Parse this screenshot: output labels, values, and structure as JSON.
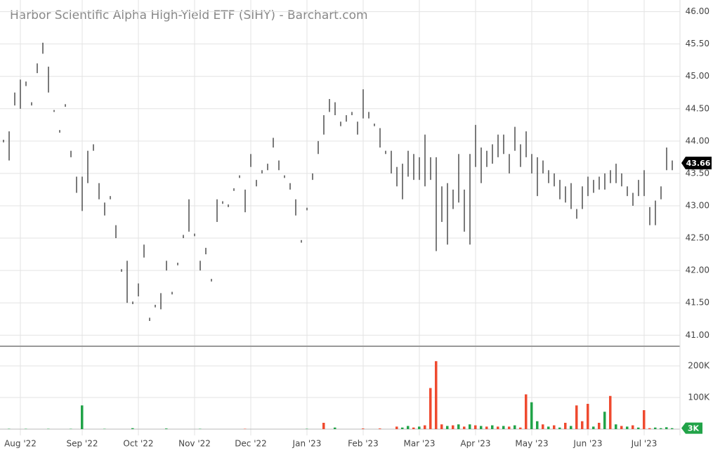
{
  "chart_data": {
    "type": "ohlc",
    "title": "Harbor Scientific Alpha High-Yield ETF (SIHY) - Barchart.com",
    "color": "#222222",
    "grid": true,
    "categories": [
      null,
      null,
      null,
      "Aug '22",
      null,
      null,
      null,
      null,
      null,
      null,
      null,
      null,
      null,
      null,
      "Sep '22",
      null,
      null,
      null,
      null,
      null,
      null,
      null,
      null,
      null,
      "Oct '22",
      null,
      null,
      null,
      null,
      null,
      null,
      null,
      null,
      null,
      "Nov '22",
      null,
      null,
      null,
      null,
      null,
      null,
      null,
      null,
      null,
      "Dec '22",
      null,
      null,
      null,
      null,
      null,
      null,
      null,
      null,
      null,
      "Jan '23",
      null,
      null,
      null,
      null,
      null,
      null,
      null,
      null,
      null,
      "Feb '23",
      null,
      null,
      null,
      null,
      null,
      null,
      null,
      null,
      null,
      "Mar '23",
      null,
      null,
      null,
      null,
      null,
      null,
      null,
      null,
      null,
      "Apr '23",
      null,
      null,
      null,
      null,
      null,
      null,
      null,
      null,
      null,
      "May '23",
      null,
      null,
      null,
      null,
      null,
      null,
      null,
      null,
      null,
      "Jun '23",
      null,
      null,
      null,
      null,
      null,
      null,
      null,
      null,
      null,
      "Jul '23",
      null,
      null,
      null,
      null,
      null
    ],
    "low": [
      43.98,
      43.7,
      44.55,
      44.5,
      44.85,
      44.55,
      45.05,
      45.35,
      44.75,
      44.45,
      44.13,
      44.53,
      43.75,
      43.2,
      42.92,
      43.35,
      43.85,
      43.1,
      42.85,
      43.1,
      42.5,
      41.98,
      41.5,
      41.48,
      41.6,
      42.2,
      41.22,
      41.43,
      41.4,
      42.0,
      41.63,
      42.08,
      42.5,
      42.6,
      42.53,
      42.0,
      42.25,
      41.83,
      42.75,
      43.03,
      42.98,
      43.23,
      43.43,
      42.9,
      43.6,
      43.3,
      43.5,
      43.55,
      43.9,
      43.55,
      43.43,
      43.25,
      42.85,
      42.43,
      42.93,
      43.4,
      43.8,
      44.1,
      44.45,
      44.4,
      44.23,
      44.3,
      44.4,
      44.1,
      44.35,
      44.35,
      44.23,
      43.9,
      43.8,
      43.5,
      43.3,
      43.1,
      43.45,
      43.4,
      43.4,
      43.3,
      43.4,
      42.3,
      42.75,
      42.4,
      42.95,
      43.05,
      42.6,
      42.4,
      43.6,
      43.35,
      43.6,
      43.65,
      43.75,
      43.8,
      43.5,
      43.85,
      43.6,
      43.75,
      43.5,
      43.15,
      43.5,
      43.35,
      43.3,
      43.1,
      43.05,
      42.95,
      42.8,
      42.95,
      43.15,
      43.2,
      43.25,
      43.25,
      43.35,
      43.35,
      43.3,
      43.15,
      43.0,
      43.15,
      43.15,
      42.7,
      42.7,
      43.1,
      43.55,
      43.55
    ],
    "high": [
      44.02,
      44.15,
      44.75,
      44.95,
      44.92,
      44.6,
      45.2,
      45.52,
      45.15,
      44.48,
      44.17,
      44.57,
      43.85,
      43.45,
      43.45,
      43.85,
      43.95,
      43.35,
      43.05,
      43.15,
      42.7,
      42.02,
      42.15,
      41.52,
      41.8,
      42.4,
      41.27,
      41.47,
      41.65,
      42.15,
      41.67,
      42.12,
      42.55,
      43.1,
      42.57,
      42.15,
      42.35,
      41.87,
      43.1,
      43.07,
      43.02,
      43.27,
      43.47,
      43.25,
      43.8,
      43.4,
      43.55,
      43.65,
      44.05,
      43.7,
      43.47,
      43.35,
      43.1,
      42.47,
      42.97,
      43.5,
      44.0,
      44.4,
      44.65,
      44.6,
      44.3,
      44.4,
      44.45,
      44.3,
      44.8,
      44.45,
      44.27,
      44.2,
      43.85,
      43.85,
      43.6,
      43.65,
      43.85,
      43.8,
      43.75,
      44.1,
      43.75,
      43.75,
      43.3,
      43.35,
      43.25,
      43.8,
      43.25,
      43.8,
      44.25,
      43.9,
      43.85,
      43.95,
      44.1,
      44.1,
      43.8,
      44.22,
      43.95,
      44.15,
      43.8,
      43.75,
      43.7,
      43.55,
      43.5,
      43.4,
      43.3,
      43.35,
      42.95,
      43.3,
      43.45,
      43.4,
      43.45,
      43.5,
      43.55,
      43.65,
      43.5,
      43.3,
      43.2,
      43.4,
      43.55,
      42.98,
      43.08,
      43.3,
      43.9,
      43.7
    ],
    "ylim": [
      40.84,
      46.18
    ],
    "yticks": [
      {
        "value": 41,
        "label": "41.00"
      },
      {
        "value": 41.5,
        "label": "41.50"
      },
      {
        "value": 42,
        "label": "42.00"
      },
      {
        "value": 42.5,
        "label": "42.50"
      },
      {
        "value": 43,
        "label": "43.00"
      },
      {
        "value": 43.5,
        "label": "43.50"
      },
      {
        "value": 44,
        "label": "44.00"
      },
      {
        "value": 44.5,
        "label": "44.50"
      },
      {
        "value": 45,
        "label": "45.00"
      },
      {
        "value": 45.5,
        "label": "45.50"
      },
      {
        "value": 46,
        "label": "46.00"
      }
    ],
    "last_price": 43.66,
    "last_price_color": "#000000",
    "volume": {
      "type": "bar",
      "values": [
        0,
        1000,
        0,
        0,
        1000,
        0,
        0,
        0,
        1000,
        0,
        0,
        0,
        1000,
        0,
        75000,
        0,
        0,
        0,
        1000,
        0,
        0,
        0,
        0,
        3000,
        0,
        0,
        0,
        0,
        0,
        2000,
        0,
        0,
        0,
        0,
        0,
        1000,
        0,
        0,
        0,
        0,
        0,
        0,
        0,
        1000,
        0,
        0,
        0,
        0,
        0,
        0,
        0,
        0,
        0,
        0,
        1000,
        0,
        0,
        20000,
        0,
        5000,
        0,
        0,
        0,
        0,
        2000,
        0,
        0,
        2000,
        0,
        0,
        8000,
        5000,
        10000,
        5000,
        8000,
        12000,
        130000,
        215000,
        15000,
        10000,
        12000,
        15000,
        8000,
        15000,
        12000,
        10000,
        8000,
        12000,
        8000,
        10000,
        8000,
        12000,
        5000,
        110000,
        85000,
        25000,
        15000,
        8000,
        12000,
        5000,
        20000,
        10000,
        75000,
        25000,
        80000,
        8000,
        20000,
        55000,
        105000,
        15000,
        10000,
        8000,
        12000,
        5000,
        60000,
        3000,
        5000,
        3000,
        6000,
        3000
      ],
      "colors": [
        "#21a348",
        "#21a348",
        "#21a348",
        "#21a348",
        "#21a348",
        "#21a348",
        "#21a348",
        "#21a348",
        "#21a348",
        "#21a348",
        "#21a348",
        "#21a348",
        "#21a348",
        "#21a348",
        "#21a348",
        "#21a348",
        "#21a348",
        "#21a348",
        "#21a348",
        "#21a348",
        "#21a348",
        "#21a348",
        "#21a348",
        "#21a348",
        "#21a348",
        "#21a348",
        "#21a348",
        "#21a348",
        "#21a348",
        "#21a348",
        "#21a348",
        "#21a348",
        "#21a348",
        "#21a348",
        "#21a348",
        "#21a348",
        "#21a348",
        "#21a348",
        "#21a348",
        "#21a348",
        "#21a348",
        "#21a348",
        "#21a348",
        "#ef4a2f",
        "#21a348",
        "#21a348",
        "#21a348",
        "#21a348",
        "#21a348",
        "#21a348",
        "#21a348",
        "#21a348",
        "#21a348",
        "#21a348",
        "#21a348",
        "#21a348",
        "#21a348",
        "#ef4a2f",
        "#21a348",
        "#21a348",
        "#21a348",
        "#21a348",
        "#21a348",
        "#21a348",
        "#ef4a2f",
        "#21a348",
        "#21a348",
        "#ef4a2f",
        "#21a348",
        "#21a348",
        "#ef4a2f",
        "#21a348",
        "#21a348",
        "#ef4a2f",
        "#21a348",
        "#ef4a2f",
        "#ef4a2f",
        "#ef4a2f",
        "#ef4a2f",
        "#21a348",
        "#ef4a2f",
        "#21a348",
        "#ef4a2f",
        "#21a348",
        "#ef4a2f",
        "#21a348",
        "#ef4a2f",
        "#21a348",
        "#ef4a2f",
        "#21a348",
        "#ef4a2f",
        "#21a348",
        "#ef4a2f",
        "#ef4a2f",
        "#21a348",
        "#21a348",
        "#ef4a2f",
        "#21a348",
        "#ef4a2f",
        "#21a348",
        "#ef4a2f",
        "#21a348",
        "#ef4a2f",
        "#ef4a2f",
        "#ef4a2f",
        "#21a348",
        "#ef4a2f",
        "#21a348",
        "#ef4a2f",
        "#21a348",
        "#ef4a2f",
        "#21a348",
        "#ef4a2f",
        "#21a348",
        "#ef4a2f",
        "#ef4a2f",
        "#21a348",
        "#21a348",
        "#21a348",
        "#21a348"
      ],
      "ylim": [
        0,
        260000
      ],
      "yticks": [
        {
          "value": 100000,
          "label": "100K"
        },
        {
          "value": 200000,
          "label": "200K"
        }
      ],
      "last_value": {
        "value": 3000,
        "label": "3K"
      },
      "last_value_color": "#21a348"
    }
  }
}
